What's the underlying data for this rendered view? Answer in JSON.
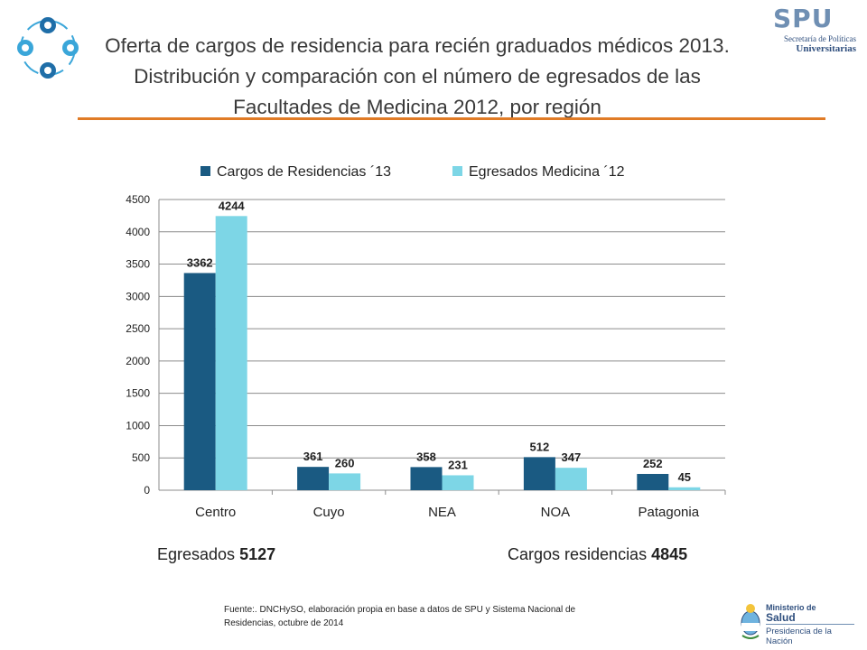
{
  "header": {
    "title_line1": "Oferta de cargos de residencia para recién graduados médicos 2013.",
    "title_line2": "Distribución y comparación con el número de egresados de las",
    "title_line3": "Facultades de Medicina 2012, por región",
    "accent_color": "#e07b26"
  },
  "logos": {
    "spu_mark": "SPU",
    "spu_line1": "Secretaría de Políticas",
    "spu_line2": "Universitarias",
    "ministry_line1": "Ministerio de",
    "ministry_line2": "Salud",
    "ministry_line3": "Presidencia de la Nación"
  },
  "chart_data": {
    "type": "bar",
    "categories": [
      "Centro",
      "Cuyo",
      "NEA",
      "NOA",
      "Patagonia"
    ],
    "series": [
      {
        "name": "Cargos de Residencias ´13",
        "values": [
          3362,
          361,
          358,
          512,
          252
        ],
        "color": "#1a5a82"
      },
      {
        "name": "Egresados Medicina ´12",
        "values": [
          4244,
          260,
          231,
          347,
          45
        ],
        "color": "#7dd6e6"
      }
    ],
    "ylim": [
      0,
      4500
    ],
    "yticks": [
      0,
      500,
      1000,
      1500,
      2000,
      2500,
      3000,
      3500,
      4000,
      4500
    ],
    "grid": true,
    "legend_position": "top"
  },
  "totals": {
    "egresados_label": "Egresados",
    "egresados_value": "5127",
    "cargos_label": "Cargos residencias",
    "cargos_value": "4845"
  },
  "footer": {
    "source_line1": "Fuente:. DNCHySO, elaboración propia en base a datos de SPU y Sistema Nacional de",
    "source_line2": "Residencias, octubre de 2014"
  }
}
